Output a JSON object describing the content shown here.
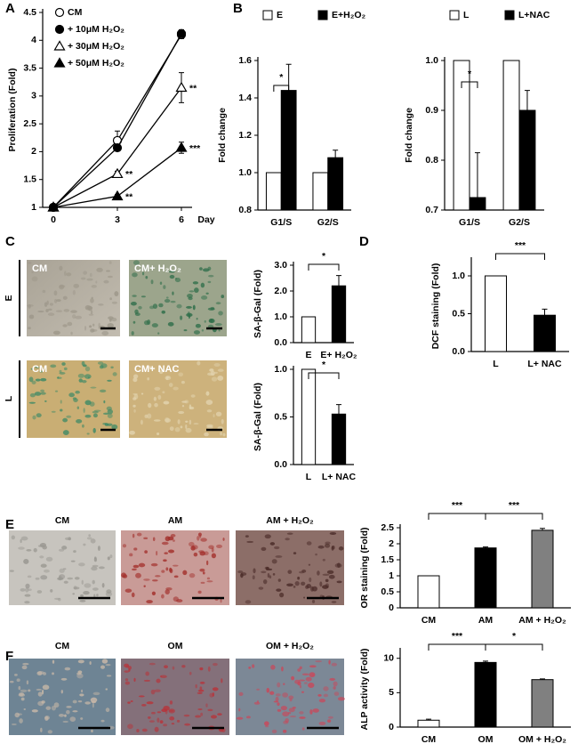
{
  "panel_labels": [
    "A",
    "B",
    "C",
    "D",
    "E",
    "F"
  ],
  "micrographs": {
    "C": {
      "rows": [
        "E",
        "L"
      ],
      "titles": [
        [
          "CM",
          "CM+ H₂O₂"
        ],
        [
          "CM",
          "CM+ NAC"
        ]
      ]
    },
    "E": {
      "titles": [
        "CM",
        "AM",
        "AM + H₂O₂"
      ]
    },
    "F": {
      "titles": [
        "CM",
        "OM",
        "OM + H₂O₂"
      ]
    }
  },
  "chart_data": [
    {
      "type": "line",
      "y_label": "Proliferation (Fold)",
      "x_label": "Day",
      "x": [
        0,
        3,
        6
      ],
      "xlim": [
        -0.5,
        6.5
      ],
      "xticks": [
        0,
        3,
        6
      ],
      "ylim": [
        1,
        4.5
      ],
      "yticks": [
        1,
        1.5,
        2,
        2.5,
        3,
        3.5,
        4,
        4.5
      ],
      "series": [
        {
          "name": "CM",
          "marker": "open-circle",
          "color": "#000000",
          "values": [
            1,
            2.2,
            4.1
          ],
          "errors": [
            0.03,
            0.17,
            0.07
          ]
        },
        {
          "name": "+ 10μM H₂O₂",
          "marker": "filled-circle",
          "color": "#000000",
          "values": [
            1,
            2.07,
            4.12
          ],
          "errors": [
            0.02,
            0.05,
            0.07
          ]
        },
        {
          "name": "+ 30μM H₂O₂",
          "marker": "open-triangle",
          "color": "#000000",
          "values": [
            1,
            1.6,
            3.15
          ],
          "errors": [
            0.02,
            0.05,
            0.27
          ],
          "point_labels": [
            null,
            "**",
            "**"
          ]
        },
        {
          "name": "+ 50μM H₂O₂",
          "marker": "filled-triangle",
          "color": "#000000",
          "values": [
            1,
            1.2,
            2.07
          ],
          "errors": [
            0.02,
            0.03,
            0.1
          ],
          "point_labels": [
            null,
            "**",
            "***"
          ]
        }
      ]
    },
    {
      "type": "bar",
      "y_label": "Fold change",
      "legend": "top",
      "categories": [
        "G1/S",
        "G2/S"
      ],
      "ylim": [
        0.8,
        1.6
      ],
      "yticks": [
        0.8,
        {
          "value": 1,
          "label": "1.0"
        },
        1.2,
        1.4,
        1.6
      ],
      "series": [
        {
          "name": "E",
          "color": "#ffffff",
          "values": [
            1,
            1
          ],
          "errors": [
            0,
            0
          ]
        },
        {
          "name": "E+H₂O₂",
          "color": "#000000",
          "values": [
            1.44,
            1.08
          ],
          "errors": [
            0.14,
            0.04
          ]
        }
      ],
      "significance": [
        "*"
      ]
    },
    {
      "type": "bar",
      "y_label": "Fold change",
      "legend": "top",
      "categories": [
        "G1/S",
        "G2/S"
      ],
      "ylim": [
        0.7,
        1
      ],
      "yticks": [
        0.7,
        0.8,
        0.9,
        {
          "value": 1,
          "label": "1.0"
        }
      ],
      "series": [
        {
          "name": "L",
          "color": "#ffffff",
          "values": [
            1,
            1
          ],
          "errors": [
            0,
            0
          ]
        },
        {
          "name": "L+NAC",
          "color": "#000000",
          "values": [
            0.725,
            0.9
          ],
          "errors": [
            0.09,
            0.04
          ]
        }
      ],
      "significance": [
        "*"
      ]
    },
    {
      "type": "bar",
      "y_label": "SA-β-Gal (Fold)",
      "categories": [
        "E",
        "E+ H₂O₂"
      ],
      "ylim": [
        0,
        3
      ],
      "yticks": [
        {
          "value": 0,
          "label": "0.0"
        },
        {
          "value": 1,
          "label": "1.0"
        },
        {
          "value": 2,
          "label": "2.0"
        },
        {
          "value": 3,
          "label": "3.0"
        }
      ],
      "values": [
        1,
        2.2
      ],
      "errors": [
        0,
        0.4
      ],
      "colors": [
        "#ffffff",
        "#000000"
      ],
      "significance": [
        "*"
      ]
    },
    {
      "type": "bar",
      "y_label": "SA-β-Gal (Fold)",
      "categories": [
        "L",
        "L+ NAC"
      ],
      "ylim": [
        0,
        1
      ],
      "yticks": [
        {
          "value": 0,
          "label": "0.0"
        },
        0.5,
        {
          "value": 1,
          "label": "1.0"
        }
      ],
      "values": [
        1,
        0.53
      ],
      "errors": [
        0,
        0.1
      ],
      "colors": [
        "#ffffff",
        "#000000"
      ],
      "significance": [
        "*"
      ]
    },
    {
      "type": "bar",
      "y_label": "DCF staining (Fold)",
      "categories": [
        "L",
        "L+ NAC"
      ],
      "ylim": [
        0,
        1.2
      ],
      "yticks": [
        {
          "value": 0,
          "label": "0.0"
        },
        0.5,
        {
          "value": 1,
          "label": "1.0"
        }
      ],
      "values": [
        1,
        0.48
      ],
      "errors": [
        0,
        0.08
      ],
      "colors": [
        "#ffffff",
        "#000000"
      ],
      "significance": [
        "***"
      ]
    },
    {
      "type": "bar",
      "y_label": "OR staining (Fold)",
      "categories": [
        "CM",
        "AM",
        "AM + H₂O₂"
      ],
      "ylim": [
        0,
        2.5
      ],
      "yticks": [
        0,
        0.5,
        1,
        1.5,
        2,
        2.5
      ],
      "values": [
        1,
        1.87,
        2.42
      ],
      "errors": [
        0,
        0.03,
        0.06
      ],
      "colors": [
        "#ffffff",
        "#000000",
        "#808080"
      ],
      "significance": [
        "***",
        "***"
      ]
    },
    {
      "type": "bar",
      "y_label": "ALP activity (Fold)",
      "categories": [
        "CM",
        "OM",
        "OM + H₂O₂"
      ],
      "ylim": [
        0,
        11
      ],
      "yticks": [
        0,
        5,
        10
      ],
      "values": [
        1,
        9.4,
        6.9
      ],
      "errors": [
        0.15,
        0.2,
        0.1
      ],
      "colors": [
        "#ffffff",
        "#000000",
        "#808080"
      ],
      "significance": [
        "***",
        "*"
      ]
    }
  ]
}
